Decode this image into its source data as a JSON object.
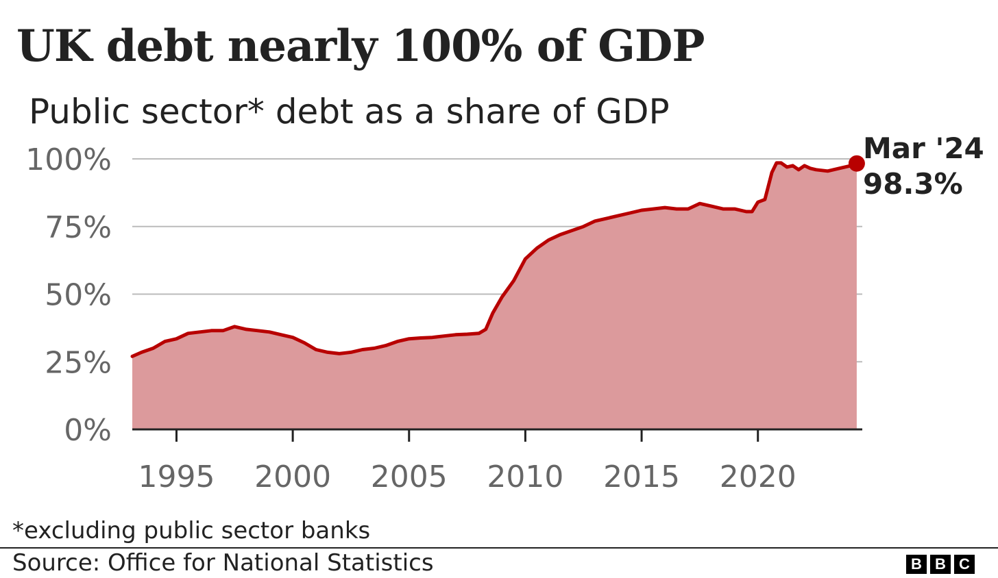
{
  "header": {
    "title": "UK debt nearly 100% of GDP",
    "subtitle": "Public sector* debt as a share of GDP"
  },
  "footer": {
    "footnote": "*excluding public sector banks",
    "source": "Source: Office for National Statistics",
    "logo_letters": [
      "B",
      "B",
      "C"
    ]
  },
  "colors": {
    "line": "#b80000",
    "area": "#dc9a9c",
    "grid": "#bbbbbb",
    "axis": "#222222",
    "tick_text": "#666666"
  },
  "chart_data": {
    "type": "area",
    "title": "UK debt nearly 100% of GDP",
    "subtitle": "Public sector* debt as a share of GDP",
    "xlabel": "",
    "ylabel": "",
    "xlim": [
      1993.1,
      2024.25
    ],
    "ylim": [
      0,
      100
    ],
    "grid": true,
    "y_ticks": [
      {
        "value": 0,
        "label": "0%"
      },
      {
        "value": 25,
        "label": "25%"
      },
      {
        "value": 50,
        "label": "50%"
      },
      {
        "value": 75,
        "label": "75%"
      },
      {
        "value": 100,
        "label": "100%"
      }
    ],
    "x_ticks": [
      {
        "value": 1995,
        "label": "1995"
      },
      {
        "value": 2000,
        "label": "2000"
      },
      {
        "value": 2005,
        "label": "2005"
      },
      {
        "value": 2010,
        "label": "2010"
      },
      {
        "value": 2015,
        "label": "2015"
      },
      {
        "value": 2020,
        "label": "2020"
      }
    ],
    "series": [
      {
        "x": [
          1993.1,
          1993.5,
          1994.0,
          1994.5,
          1995.0,
          1995.5,
          1996.0,
          1996.5,
          1997.0,
          1997.5,
          1998.0,
          1998.5,
          1999.0,
          1999.5,
          2000.0,
          2000.5,
          2001.0,
          2001.5,
          2002.0,
          2002.5,
          2003.0,
          2003.5,
          2004.0,
          2004.5,
          2005.0,
          2005.5,
          2006.0,
          2006.5,
          2007.0,
          2007.5,
          2008.0,
          2008.3,
          2008.6,
          2009.0,
          2009.5,
          2010.0,
          2010.5,
          2011.0,
          2011.5,
          2012.0,
          2012.5,
          2013.0,
          2013.5,
          2014.0,
          2014.5,
          2015.0,
          2015.5,
          2016.0,
          2016.5,
          2017.0,
          2017.5,
          2018.0,
          2018.5,
          2019.0,
          2019.5,
          2019.75,
          2020.0,
          2020.3,
          2020.6,
          2020.8,
          2021.0,
          2021.25,
          2021.5,
          2021.75,
          2022.0,
          2022.25,
          2022.5,
          2023.0,
          2023.5,
          2024.0,
          2024.25
        ],
        "y": [
          27.0,
          28.5,
          30.0,
          32.5,
          33.5,
          35.5,
          36.0,
          36.5,
          36.5,
          38.0,
          37.0,
          36.5,
          36.0,
          35.0,
          34.0,
          32.0,
          29.5,
          28.5,
          28.0,
          28.5,
          29.5,
          30.0,
          31.0,
          32.5,
          33.5,
          33.8,
          34.0,
          34.5,
          35.0,
          35.2,
          35.5,
          37.0,
          43.0,
          49.0,
          55.0,
          63.0,
          67.0,
          70.0,
          72.0,
          73.5,
          75.0,
          77.0,
          78.0,
          79.0,
          80.0,
          81.0,
          81.5,
          82.0,
          81.5,
          81.5,
          83.5,
          82.5,
          81.5,
          81.5,
          80.5,
          80.5,
          84.0,
          85.0,
          95.0,
          98.5,
          98.5,
          97.0,
          97.5,
          96.0,
          97.5,
          96.5,
          96.0,
          95.5,
          96.5,
          97.5,
          98.3
        ]
      }
    ],
    "annotations": [
      {
        "x": 2024.25,
        "y": 98.3,
        "label_line1": "Mar '24",
        "label_line2": "98.3%"
      }
    ]
  }
}
